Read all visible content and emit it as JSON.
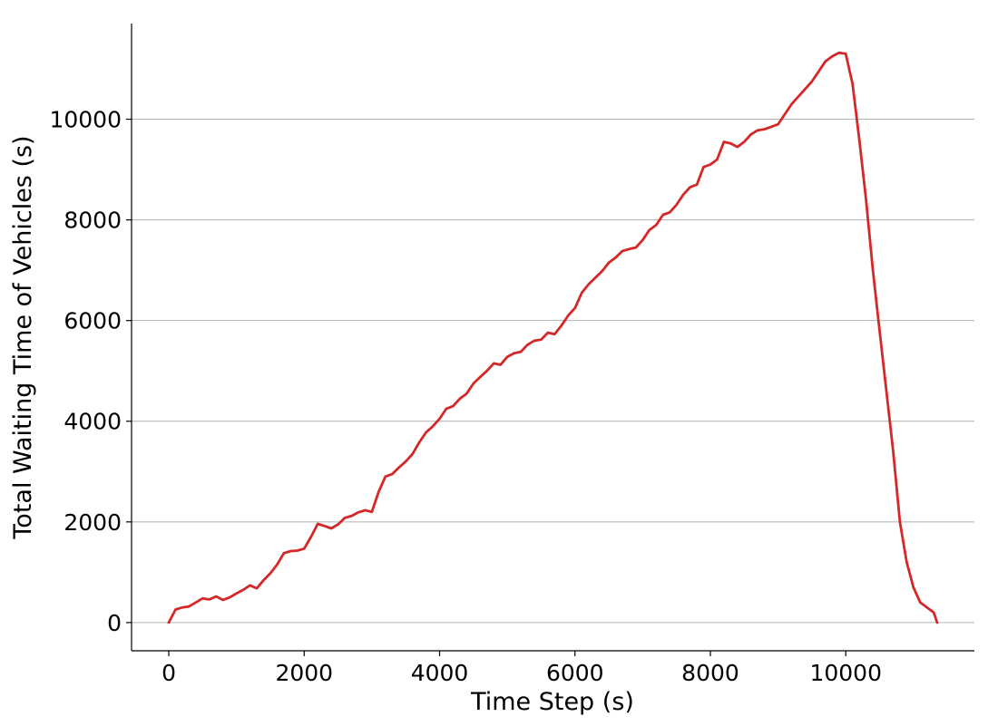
{
  "chart_data": {
    "type": "line",
    "title": "",
    "xlabel": "Time Step (s)",
    "ylabel": "Total Waiting Time of Vehicles (s)",
    "xlim": [
      -550,
      11900
    ],
    "ylim": [
      -560,
      11900
    ],
    "xticks": [
      0,
      2000,
      4000,
      6000,
      8000,
      10000
    ],
    "yticks": [
      0,
      2000,
      4000,
      6000,
      8000,
      10000
    ],
    "grid": "y-major",
    "legend": "none",
    "series": [
      {
        "color": "#d62728",
        "x": [
          0,
          100,
          200,
          300,
          400,
          500,
          600,
          700,
          800,
          900,
          1000,
          1100,
          1200,
          1300,
          1400,
          1500,
          1600,
          1700,
          1800,
          1900,
          2000,
          2100,
          2200,
          2300,
          2400,
          2500,
          2600,
          2700,
          2800,
          2900,
          3000,
          3100,
          3200,
          3300,
          3400,
          3500,
          3600,
          3700,
          3800,
          3900,
          4000,
          4100,
          4200,
          4300,
          4400,
          4500,
          4600,
          4700,
          4800,
          4900,
          5000,
          5100,
          5200,
          5300,
          5400,
          5500,
          5600,
          5700,
          5800,
          5900,
          6000,
          6100,
          6200,
          6300,
          6400,
          6500,
          6600,
          6700,
          6800,
          6900,
          7000,
          7100,
          7200,
          7300,
          7400,
          7500,
          7600,
          7700,
          7800,
          7900,
          8000,
          8100,
          8200,
          8300,
          8400,
          8500,
          8600,
          8700,
          8800,
          8900,
          9000,
          9100,
          9200,
          9300,
          9400,
          9500,
          9600,
          9700,
          9800,
          9900,
          10000,
          10100,
          10200,
          10300,
          10400,
          10500,
          10600,
          10700,
          10800,
          10900,
          11000,
          11100,
          11200,
          11300,
          11350
        ],
        "y": [
          0,
          260,
          300,
          320,
          400,
          480,
          460,
          520,
          450,
          500,
          580,
          650,
          740,
          680,
          840,
          980,
          1150,
          1380,
          1420,
          1430,
          1470,
          1700,
          1960,
          1920,
          1870,
          1950,
          2080,
          2120,
          2190,
          2230,
          2200,
          2600,
          2900,
          2950,
          3080,
          3200,
          3350,
          3580,
          3780,
          3900,
          4050,
          4250,
          4300,
          4450,
          4550,
          4750,
          4880,
          5000,
          5150,
          5120,
          5280,
          5350,
          5380,
          5520,
          5600,
          5620,
          5760,
          5730,
          5900,
          6100,
          6250,
          6550,
          6720,
          6850,
          6980,
          7150,
          7250,
          7380,
          7420,
          7450,
          7600,
          7800,
          7900,
          8100,
          8150,
          8300,
          8500,
          8650,
          8700,
          9050,
          9100,
          9200,
          9550,
          9520,
          9450,
          9550,
          9700,
          9780,
          9800,
          9850,
          9900,
          10100,
          10300,
          10450,
          10600,
          10750,
          10950,
          11150,
          11250,
          11320,
          11300,
          10700,
          9600,
          8400,
          7000,
          5800,
          4600,
          3400,
          2000,
          1200,
          700,
          400,
          300,
          200,
          0
        ]
      }
    ]
  }
}
